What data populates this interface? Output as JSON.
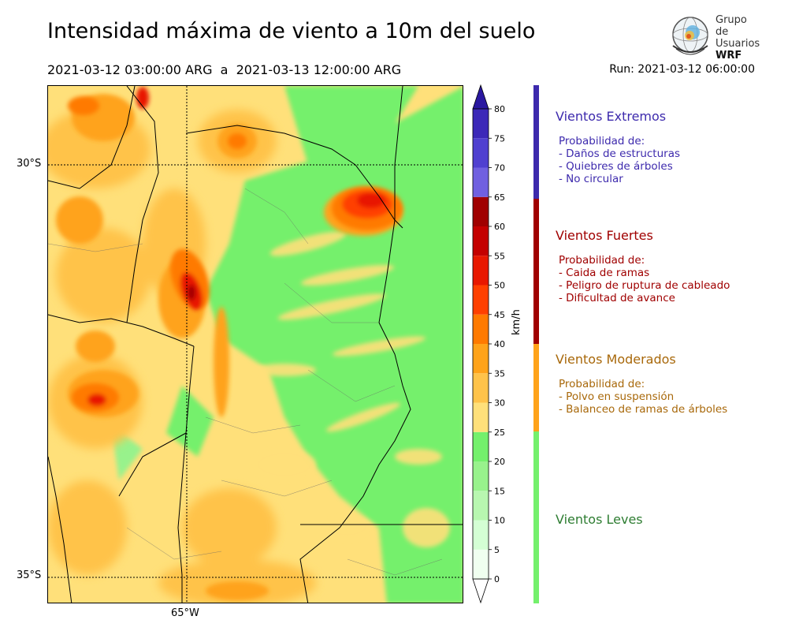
{
  "header": {
    "title": "Intensidad máxima de viento a 10m del suelo",
    "valid_period": "2021-03-12 03:00:00 ARG  a  2021-03-13 12:00:00 ARG",
    "run": "Run: 2021-03-12 06:00:00"
  },
  "logo": {
    "line1": "Grupo de",
    "line2": "Usuarios",
    "line3": "WRF"
  },
  "map": {
    "lat_labels": [
      "30°S",
      "35°S"
    ],
    "lon_labels": [
      "65°W"
    ]
  },
  "colorbar": {
    "unit": "km/h",
    "ticks": [
      "0",
      "5",
      "10",
      "15",
      "20",
      "25",
      "30",
      "35",
      "40",
      "45",
      "50",
      "55",
      "60",
      "65",
      "70",
      "75",
      "80"
    ],
    "colors": [
      "#f0fff0",
      "#d4ffd4",
      "#b8f7b0",
      "#98f28c",
      "#74f06c",
      "#ffe07a",
      "#ffc34a",
      "#ffa31a",
      "#ff7a00",
      "#ff4000",
      "#e81800",
      "#c40000",
      "#a00000",
      "#7060e0",
      "#5040d0",
      "#3c28b8"
    ],
    "over_color": "#2a18a0",
    "under_color": "#ffffff"
  },
  "legend": {
    "extremos": {
      "title": "Vientos Extremos",
      "color": "#3d2aad",
      "lines": [
        "Probabilidad de:",
        "- Daños de estructuras",
        "- Quiebres de árboles",
        "- No circular"
      ]
    },
    "fuertes": {
      "title": "Vientos Fuertes",
      "color": "#a00000",
      "lines": [
        "Probabilidad de:",
        "- Caida de ramas",
        "- Peligro de ruptura de cableado",
        "- Dificultad de avance"
      ]
    },
    "moderados": {
      "title": "Vientos Moderados",
      "color": "#a8680a",
      "lines": [
        "Probabilidad de:",
        "- Polvo en suspensión",
        "- Balanceo de ramas de árboles"
      ]
    },
    "leves": {
      "title": "Vientos Leves",
      "color": "#2e7d32",
      "lines": []
    }
  }
}
